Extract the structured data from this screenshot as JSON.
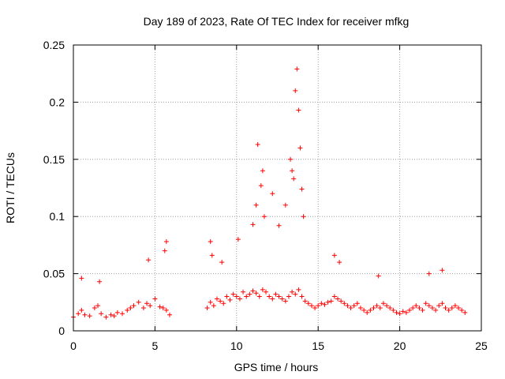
{
  "chart_data": {
    "type": "scatter",
    "title": "Day 189 of 2023, Rate Of TEC Index for receiver mfkg",
    "xlabel": "GPS time / hours",
    "ylabel": "ROTI / TECUs",
    "xlim": [
      0,
      25
    ],
    "ylim": [
      0,
      0.25
    ],
    "x_ticks": [
      "0",
      "5",
      "10",
      "15",
      "20",
      "25"
    ],
    "y_ticks": [
      "0",
      "0.05",
      "0.1",
      "0.15",
      "0.2",
      "0.25"
    ],
    "grid": true,
    "marker": "+",
    "color": "#ff0000",
    "series": [
      {
        "x": [
          0.0,
          0.3,
          0.5,
          0.7,
          1.0,
          1.3,
          1.5,
          1.7,
          2.0,
          2.3,
          2.5,
          2.7,
          3.0,
          3.3,
          3.5,
          3.7,
          4.0,
          4.3,
          4.5,
          4.7,
          5.0,
          5.3,
          5.5,
          5.7,
          5.9,
          8.2,
          8.4,
          8.6,
          8.8,
          9.0,
          9.2,
          9.4,
          9.6,
          9.8,
          10.0,
          10.2,
          10.4,
          10.6,
          10.8,
          11.0,
          11.2,
          11.4,
          11.6,
          11.8,
          12.0,
          12.2,
          12.4,
          12.6,
          12.8,
          13.0,
          13.2,
          13.4,
          13.6,
          13.8,
          14.0,
          14.2,
          14.4,
          14.6,
          14.8,
          15.0,
          15.2,
          15.4,
          15.6,
          15.8,
          16.0,
          16.2,
          16.4,
          16.6,
          16.8,
          17.0,
          17.2,
          17.4,
          17.6,
          17.8,
          18.0,
          18.2,
          18.4,
          18.6,
          18.8,
          19.0,
          19.2,
          19.4,
          19.6,
          19.8,
          20.0,
          20.2,
          20.4,
          20.6,
          20.8,
          21.0,
          21.2,
          21.4,
          21.6,
          21.8,
          22.0,
          22.2,
          22.4,
          22.6,
          22.8,
          23.0,
          23.2,
          23.4,
          23.6,
          23.8,
          24.0,
          0.5,
          1.6,
          4.6,
          5.7,
          5.6,
          8.4,
          8.5,
          9.1,
          10.1,
          11.0,
          11.2,
          11.3,
          11.5,
          11.6,
          11.7,
          12.2,
          12.6,
          13.0,
          13.3,
          13.4,
          13.5,
          13.6,
          13.7,
          13.8,
          13.9,
          14.0,
          14.1,
          16.0,
          16.3,
          18.7,
          21.8,
          22.6
        ],
        "y": [
          0.012,
          0.015,
          0.018,
          0.014,
          0.013,
          0.02,
          0.022,
          0.015,
          0.012,
          0.014,
          0.013,
          0.016,
          0.015,
          0.018,
          0.02,
          0.022,
          0.025,
          0.02,
          0.024,
          0.022,
          0.028,
          0.021,
          0.02,
          0.018,
          0.014,
          0.02,
          0.025,
          0.022,
          0.028,
          0.026,
          0.024,
          0.03,
          0.027,
          0.032,
          0.03,
          0.028,
          0.034,
          0.03,
          0.032,
          0.035,
          0.033,
          0.03,
          0.036,
          0.034,
          0.03,
          0.028,
          0.032,
          0.03,
          0.028,
          0.026,
          0.03,
          0.034,
          0.032,
          0.036,
          0.03,
          0.026,
          0.024,
          0.022,
          0.02,
          0.022,
          0.024,
          0.023,
          0.025,
          0.026,
          0.03,
          0.028,
          0.026,
          0.024,
          0.022,
          0.02,
          0.022,
          0.024,
          0.02,
          0.018,
          0.016,
          0.018,
          0.02,
          0.022,
          0.02,
          0.024,
          0.022,
          0.02,
          0.018,
          0.016,
          0.015,
          0.017,
          0.016,
          0.018,
          0.02,
          0.022,
          0.02,
          0.018,
          0.024,
          0.022,
          0.02,
          0.018,
          0.022,
          0.024,
          0.02,
          0.018,
          0.02,
          0.022,
          0.02,
          0.018,
          0.016,
          0.046,
          0.043,
          0.062,
          0.078,
          0.07,
          0.078,
          0.066,
          0.06,
          0.08,
          0.093,
          0.11,
          0.163,
          0.127,
          0.14,
          0.1,
          0.12,
          0.092,
          0.11,
          0.15,
          0.14,
          0.133,
          0.21,
          0.229,
          0.193,
          0.16,
          0.124,
          0.1,
          0.066,
          0.06,
          0.048,
          0.05,
          0.053
        ]
      }
    ]
  }
}
